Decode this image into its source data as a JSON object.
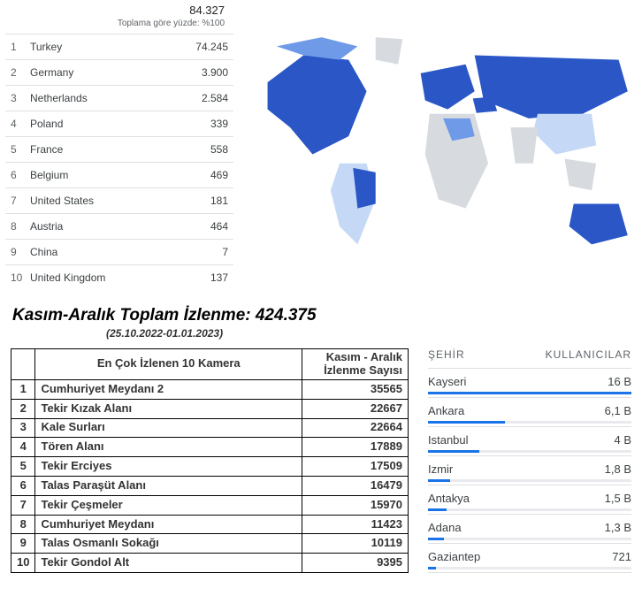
{
  "countries": {
    "total": "84.327",
    "subtext": "Toplama göre yüzde: %100",
    "rows": [
      {
        "rank": "1",
        "name": "Turkey",
        "value": "74.245"
      },
      {
        "rank": "2",
        "name": "Germany",
        "value": "3.900"
      },
      {
        "rank": "3",
        "name": "Netherlands",
        "value": "2.584"
      },
      {
        "rank": "4",
        "name": "Poland",
        "value": "339"
      },
      {
        "rank": "5",
        "name": "France",
        "value": "558"
      },
      {
        "rank": "6",
        "name": "Belgium",
        "value": "469"
      },
      {
        "rank": "7",
        "name": "United States",
        "value": "181"
      },
      {
        "rank": "8",
        "name": "Austria",
        "value": "464"
      },
      {
        "rank": "9",
        "name": "China",
        "value": "7"
      },
      {
        "rank": "10",
        "name": "United Kingdom",
        "value": "137"
      }
    ]
  },
  "map": {
    "land_color": "#d7dbdf",
    "highlight_dark": "#2a56c6",
    "highlight_mid": "#6f9ae8",
    "highlight_light": "#c5d9f7",
    "background": "#ffffff"
  },
  "title": {
    "main": "Kasım-Aralık Toplam İzlenme: 424.375",
    "sub": "(25.10.2022-01.01.2023)"
  },
  "cameras": {
    "header_left": "En Çok İzlenen 10 Kamera",
    "header_right": "Kasım - Aralık İzlenme Sayısı",
    "rows": [
      {
        "rank": "1",
        "name": "Cumhuriyet Meydanı 2",
        "value": "35565"
      },
      {
        "rank": "2",
        "name": "Tekir Kızak Alanı",
        "value": "22667"
      },
      {
        "rank": "3",
        "name": "Kale Surları",
        "value": "22664"
      },
      {
        "rank": "4",
        "name": "Tören Alanı",
        "value": "17889"
      },
      {
        "rank": "5",
        "name": "Tekir Erciyes",
        "value": "17509"
      },
      {
        "rank": "6",
        "name": "Talas Paraşüt Alanı",
        "value": "16479"
      },
      {
        "rank": "7",
        "name": "Tekir Çeşmeler",
        "value": "15970"
      },
      {
        "rank": "8",
        "name": "Cumhuriyet Meydanı",
        "value": "11423"
      },
      {
        "rank": "9",
        "name": "Talas Osmanlı Sokağı",
        "value": "10119"
      },
      {
        "rank": "10",
        "name": "Tekir Gondol Alt",
        "value": "9395"
      }
    ]
  },
  "cities": {
    "header_city": "ŞEHİR",
    "header_users": "KULLANICILAR",
    "bar_color": "#1a73e8",
    "bar_bg": "#e8eaed",
    "rows": [
      {
        "name": "Kayseri",
        "value": "16 B",
        "pct": 100
      },
      {
        "name": "Ankara",
        "value": "6,1 B",
        "pct": 38
      },
      {
        "name": "Istanbul",
        "value": "4 B",
        "pct": 25
      },
      {
        "name": "Izmir",
        "value": "1,8 B",
        "pct": 11
      },
      {
        "name": "Antakya",
        "value": "1,5 B",
        "pct": 9
      },
      {
        "name": "Adana",
        "value": "1,3 B",
        "pct": 8
      },
      {
        "name": "Gaziantep",
        "value": "721",
        "pct": 4
      }
    ]
  }
}
